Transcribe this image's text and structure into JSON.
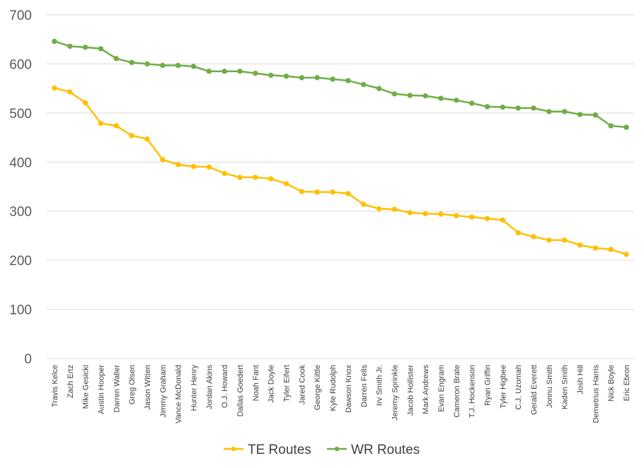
{
  "chart_data": {
    "type": "line",
    "title": "",
    "xlabel": "",
    "ylabel": "",
    "ylim": [
      0,
      700
    ],
    "yticks": [
      0,
      100,
      200,
      300,
      400,
      500,
      600,
      700
    ],
    "ytick_labels": [
      "0",
      "100",
      "200",
      "300",
      "400",
      "500",
      "600",
      "700"
    ],
    "grid": true,
    "legend_position": "bottom",
    "categories": [
      "Travis Kelce",
      "Zach Ertz",
      "Mike Gesicki",
      "Austin Hooper",
      "Darren Waller",
      "Greg Olsen",
      "Jason Witten",
      "Jimmy Graham",
      "Vance McDonald",
      "Hunter Henry",
      "Jordan Akins",
      "O.J. Howard",
      "Dallas Goedert",
      "Noah Fant",
      "Jack Doyle",
      "Tyler Eifert",
      "Jared Cook",
      "George Kittle",
      "Kyle Rudolph",
      "Dawson Knox",
      "Darren Fells",
      "Irv Smith Jr.",
      "Jeremy Sprinkle",
      "Jacob Hollister",
      "Mark Andrews",
      "Evan Engram",
      "Cameron Brate",
      "T.J. Hockenson",
      "Ryan Griffin",
      "Tyler Higbee",
      "C.J. Uzomah",
      "Gerald Everett",
      "Jonnu Smith",
      "Kaden Smith",
      "Josh Hill",
      "Demetrius Harris",
      "Nick Boyle",
      "Eric Ebron"
    ],
    "series": [
      {
        "name": "TE Routes",
        "color": "#FFC000",
        "values": [
          551,
          543,
          521,
          479,
          474,
          454,
          447,
          405,
          395,
          391,
          390,
          377,
          369,
          369,
          366,
          356,
          340,
          339,
          339,
          336,
          314,
          305,
          304,
          297,
          295,
          294,
          291,
          288,
          285,
          282,
          256,
          248,
          241,
          241,
          231,
          225,
          222,
          212
        ]
      },
      {
        "name": "WR Routes",
        "color": "#70AD47",
        "values": [
          646,
          636,
          634,
          631,
          611,
          603,
          600,
          597,
          597,
          595,
          585,
          585,
          585,
          581,
          577,
          575,
          572,
          572,
          569,
          566,
          558,
          550,
          539,
          536,
          535,
          530,
          526,
          520,
          513,
          512,
          510,
          510,
          503,
          503,
          497,
          496,
          474,
          471
        ]
      }
    ]
  }
}
